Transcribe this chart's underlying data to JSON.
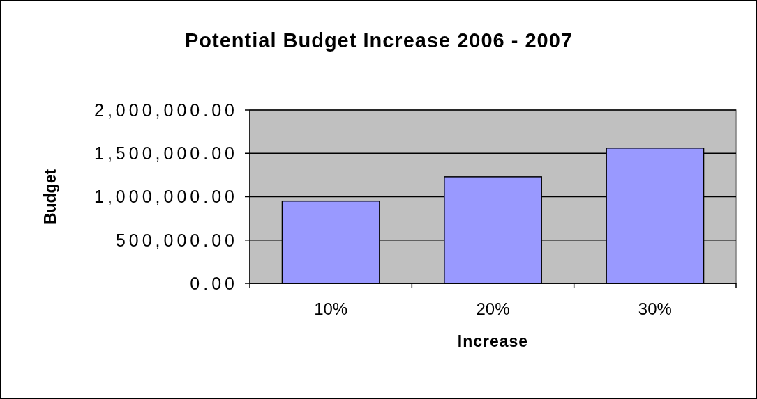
{
  "chart_data": {
    "type": "bar",
    "title": "Potential Budget Increase 2006 - 2007",
    "xlabel": "Increase",
    "ylabel": "Budget",
    "categories": [
      "10%",
      "20%",
      "30%"
    ],
    "values": [
      950000,
      1230000,
      1560000
    ],
    "color": "#9999ff",
    "ylim": [
      0,
      2000000
    ],
    "yticks": [
      {
        "value": 0,
        "label": "0.00"
      },
      {
        "value": 500000,
        "label": "500,000.00"
      },
      {
        "value": 1000000,
        "label": "1,000,000.00"
      },
      {
        "value": 1500000,
        "label": "1,500,000.00"
      },
      {
        "value": 2000000,
        "label": "2,000,000.00"
      }
    ],
    "grid": "y"
  }
}
